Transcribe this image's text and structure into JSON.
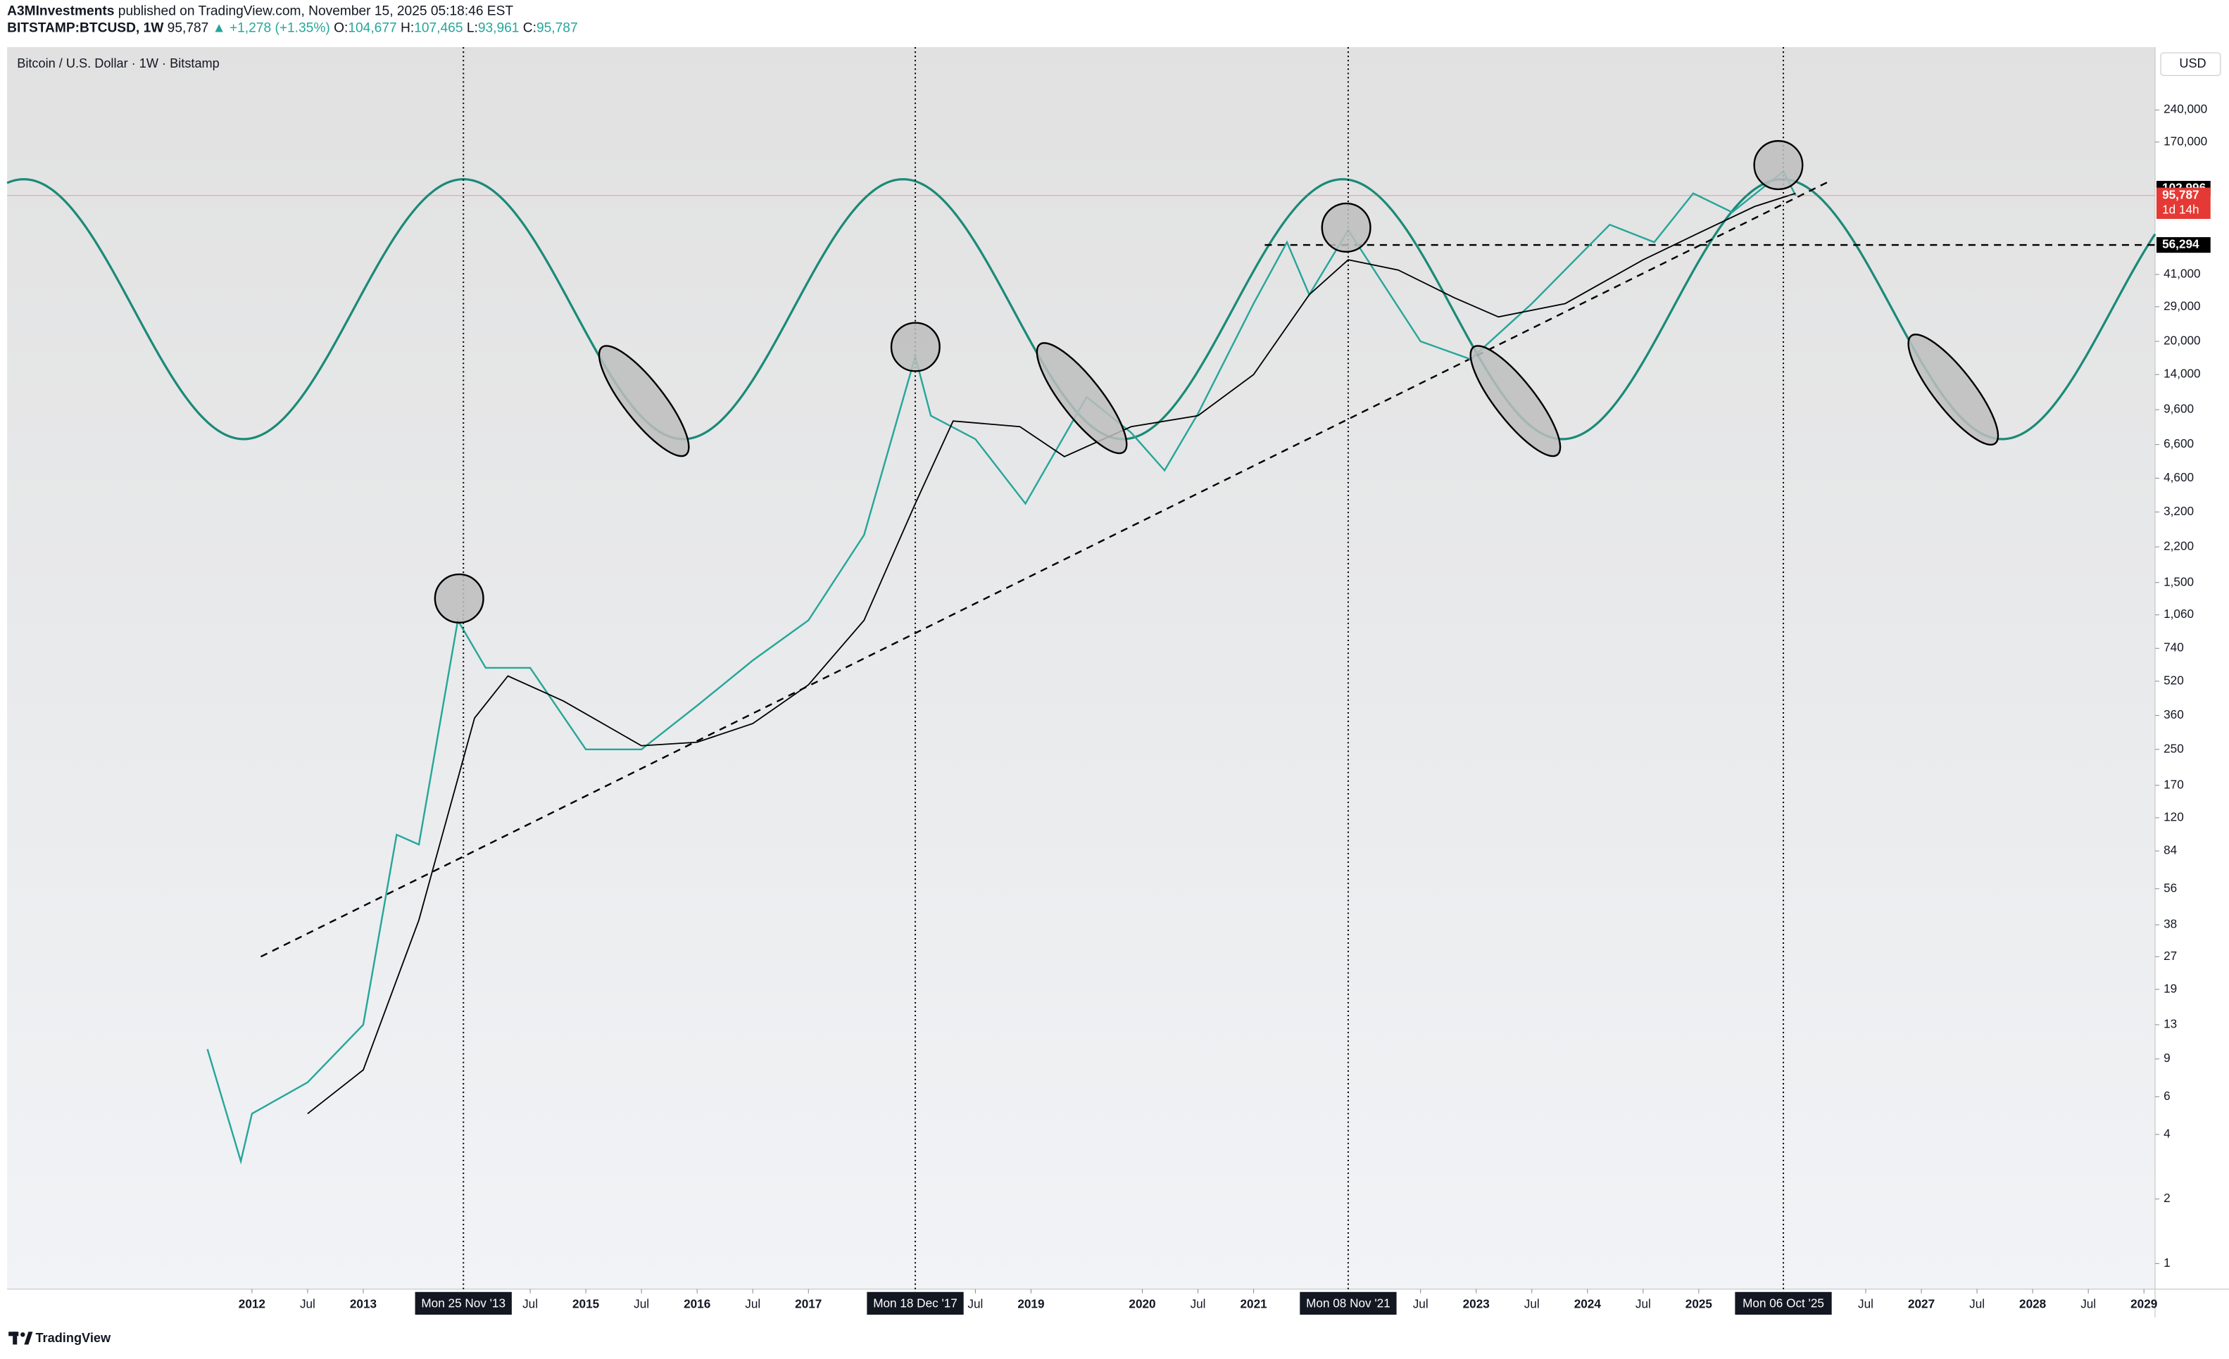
{
  "header": {
    "author": "A3MInvestments",
    "published": "published on TradingView.com, November 15, 2025 05:18:46 EST",
    "symbol": "BITSTAMP:BTCUSD, 1W",
    "last": "95,787",
    "change": "▲ +1,278 (+1.35%)",
    "ohlc": [
      {
        "label": "O:",
        "value": "104,677"
      },
      {
        "label": "H:",
        "value": "107,465"
      },
      {
        "label": "L:",
        "value": "93,961"
      },
      {
        "label": "C:",
        "value": "95,787"
      }
    ]
  },
  "footer": {
    "brand": "TradingView"
  },
  "chart_data": {
    "type": "line",
    "title": "Bitcoin / U.S. Dollar · 1W · Bitstamp",
    "currency": "USD",
    "log_scale": true,
    "grid": false,
    "xlim": [
      2009.8,
      2029.1
    ],
    "ylim": [
      0.76,
      471000
    ],
    "series": [
      {
        "color": "#26a69a",
        "x": [
          2011.6,
          2011.9,
          2012.0,
          2012.5,
          2013.0,
          2013.3,
          2013.5,
          2013.85,
          2014.1,
          2014.5,
          2015.0,
          2015.5,
          2016.0,
          2016.5,
          2017.0,
          2017.5,
          2017.96,
          2018.1,
          2018.5,
          2018.95,
          2019.5,
          2019.9,
          2020.2,
          2020.5,
          2021.0,
          2021.3,
          2021.5,
          2021.85,
          2022.5,
          2022.95,
          2023.5,
          2024.2,
          2024.6,
          2024.95,
          2025.3,
          2025.76,
          2025.87
        ],
        "values": [
          10,
          3,
          5,
          7,
          13,
          100,
          90,
          1000,
          600,
          600,
          250,
          250,
          400,
          650,
          1000,
          2500,
          17000,
          9000,
          7000,
          3500,
          11000,
          7500,
          5000,
          9200,
          30000,
          58000,
          33000,
          66000,
          20000,
          16500,
          30000,
          70000,
          58000,
          98000,
          80000,
          124000,
          95787
        ]
      },
      {
        "color": "#000000",
        "x": [
          2012.5,
          2013.0,
          2013.5,
          2014.0,
          2014.3,
          2014.8,
          2015.5,
          2016.0,
          2016.5,
          2017.0,
          2017.5,
          2017.96,
          2018.3,
          2018.9,
          2019.3,
          2019.9,
          2020.5,
          2021.0,
          2021.5,
          2021.85,
          2022.3,
          2022.8,
          2023.2,
          2023.8,
          2024.5,
          2025.0,
          2025.5,
          2025.87
        ],
        "values": [
          5,
          8,
          40,
          350,
          550,
          420,
          260,
          270,
          330,
          500,
          1000,
          3500,
          8500,
          8000,
          5800,
          8000,
          9000,
          14000,
          33000,
          48000,
          43000,
          32000,
          26000,
          30000,
          48000,
          64000,
          85000,
          98000
        ]
      }
    ],
    "trendline": {
      "x": [
        2012.08,
        2026.18
      ],
      "y": [
        27,
        112000
      ]
    },
    "cycle": {
      "peak": 2013.9,
      "period": 3.95,
      "high": 114000,
      "low": 7000,
      "color": "#1a8a78"
    },
    "hline": {
      "value": 56294,
      "from": 2021.1
    },
    "price_labels": [
      {
        "value": 102996,
        "label": "102,996",
        "color": "#000000"
      },
      {
        "value": 95787,
        "label": "95,787",
        "color": "#e53935",
        "sub": "1d 14h"
      },
      {
        "value": 56294,
        "label": "56,294",
        "color": "#000000"
      }
    ],
    "vlines": [
      {
        "value": 2013.9,
        "label": "Mon 25 Nov '13"
      },
      {
        "value": 2017.96,
        "label": "Mon 18 Dec '17"
      },
      {
        "value": 2021.85,
        "label": "Mon 08 Nov '21"
      },
      {
        "value": 2025.76,
        "label": "Mon 06 Oct '25"
      }
    ],
    "xticks": [
      2012,
      {
        "value": 2012.5,
        "label": "Jul"
      },
      2013,
      {
        "value": 2014.5,
        "label": "Jul"
      },
      2015,
      {
        "value": 2015.5,
        "label": "Jul"
      },
      2016,
      {
        "value": 2016.5,
        "label": "Jul"
      },
      2017,
      {
        "value": 2018.5,
        "label": "Jul"
      },
      2019,
      2020,
      {
        "value": 2020.5,
        "label": "Jul"
      },
      2021,
      {
        "value": 2022.5,
        "label": "Jul"
      },
      2023,
      {
        "value": 2023.5,
        "label": "Jul"
      },
      2024,
      {
        "value": 2024.5,
        "label": "Jul"
      },
      2025,
      {
        "value": 2026.5,
        "label": "Jul"
      },
      2027,
      {
        "value": 2027.5,
        "label": "Jul"
      },
      2028,
      {
        "value": 2028.5,
        "label": "Jul"
      },
      2029
    ],
    "yticks": [
      {
        "value": 240000,
        "label": "240,000"
      },
      {
        "value": 170000,
        "label": "170,000"
      },
      {
        "value": 41000,
        "label": "41,000"
      },
      {
        "value": 29000,
        "label": "29,000"
      },
      {
        "value": 20000,
        "label": "20,000"
      },
      {
        "value": 14000,
        "label": "14,000"
      },
      {
        "value": 9600,
        "label": "9,600"
      },
      {
        "value": 6600,
        "label": "6,600"
      },
      {
        "value": 4600,
        "label": "4,600"
      },
      {
        "value": 3200,
        "label": "3,200"
      },
      {
        "value": 2200,
        "label": "2,200"
      },
      {
        "value": 1500,
        "label": "1,500"
      },
      {
        "value": 1060,
        "label": "1,060"
      },
      740,
      520,
      360,
      250,
      170,
      120,
      84,
      56,
      38,
      27,
      19,
      13,
      9,
      6,
      4,
      2,
      1
    ]
  }
}
